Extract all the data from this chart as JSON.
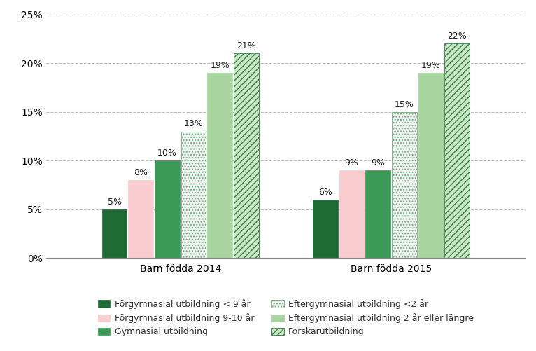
{
  "groups": [
    "Barn födda 2014",
    "Barn födda 2015"
  ],
  "categories": [
    "Förgymnasial utbildning < 9 år",
    "Förgymnasial utbildning 9-10 år",
    "Gymnasial utbildning",
    "Eftergymnasial utbildning <2 år",
    "Eftergymnasial utbildning 2 år eller längre",
    "Forskarutbildning"
  ],
  "values": {
    "Barn födda 2014": [
      5,
      8,
      10,
      13,
      19,
      21
    ],
    "Barn födda 2015": [
      6,
      9,
      9,
      15,
      19,
      22
    ]
  },
  "colors": [
    "#1e6b35",
    "#f9cdd0",
    "#3a9a55",
    "#f0f4f0",
    "#a8d4a0",
    "#c8e8c0"
  ],
  "hatch_colors": [
    "#1e6b35",
    "#f9cdd0",
    "#3a9a55",
    "#7aaa88",
    "#a8d4a0",
    "#3a7a50"
  ],
  "hatches": [
    "",
    "",
    "",
    "....",
    "",
    "////"
  ],
  "ylim": [
    0,
    25
  ],
  "yticks": [
    0,
    5,
    10,
    15,
    20,
    25
  ],
  "yticklabels": [
    "0%",
    "5%",
    "10%",
    "15%",
    "20%",
    "25%"
  ],
  "figsize": [
    7.66,
    5.01
  ],
  "dpi": 100,
  "bar_width": 0.055,
  "group_centers": [
    0.28,
    0.72
  ],
  "bg_color": "#ffffff",
  "grid_color": "#bbbbbb",
  "label_fontsize": 9,
  "legend_fontsize": 9,
  "axis_label_fontsize": 10
}
